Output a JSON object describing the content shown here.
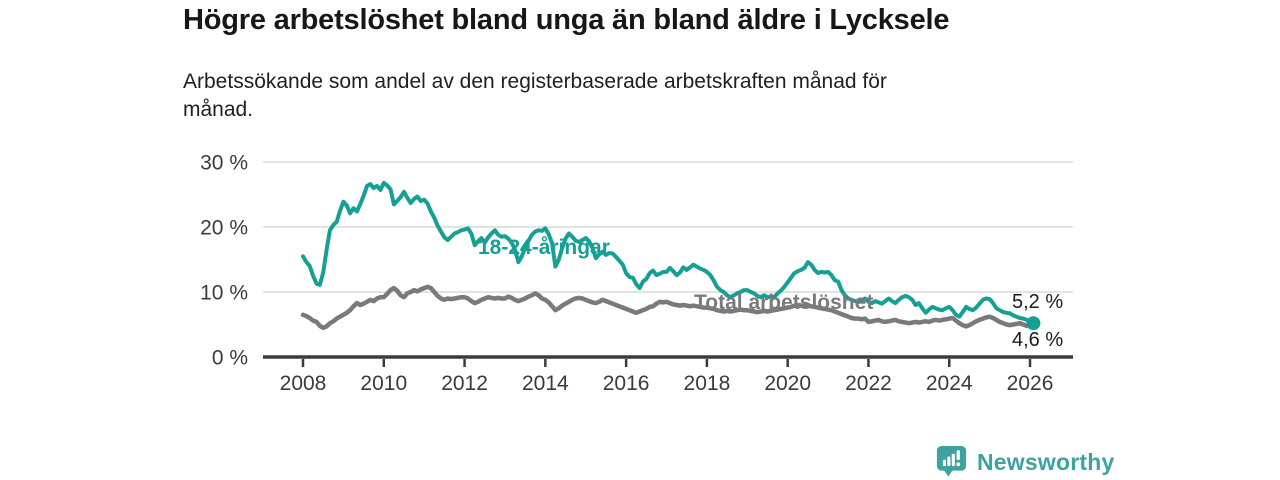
{
  "header": {
    "title": "Högre arbetslöshet bland unga än bland äldre i Lycksele",
    "subtitle_lines": [
      "Arbetssökande som andel av den registerbaserade arbetskraften månad för",
      "månad."
    ]
  },
  "footer": {
    "brand": "Newsworthy"
  },
  "colors": {
    "accent_teal": "#16a094",
    "line_gray": "#7a7a7e",
    "brand_teal": "#3ea3a0"
  },
  "chart_data": {
    "type": "line",
    "title": "Högre arbetslöshet bland unga än bland äldre i Lycksele",
    "subtitle": "Arbetssökande som andel av den registerbaserade arbetskraften månad för månad.",
    "x_unit": "month",
    "x_start": "2008-01",
    "x_end": "2026-02",
    "x_tick_labels": [
      "2008",
      "2010",
      "2012",
      "2014",
      "2016",
      "2018",
      "2020",
      "2022",
      "2024",
      "2026"
    ],
    "y_ticks": [
      0,
      10,
      20,
      30
    ],
    "y_tick_labels": [
      "0 %",
      "10 %",
      "20 %",
      "30 %"
    ],
    "ylim": [
      0,
      30
    ],
    "grid": "horizontal",
    "legend_position": "inline-labels",
    "series": [
      {
        "name": "18-24-åringar",
        "color": "#16a094",
        "end_label": "5,2 %",
        "end_value": 5.2,
        "values": [
          15.5,
          14.6,
          14.0,
          12.5,
          11.3,
          11.1,
          13.0,
          16.5,
          19.5,
          20.3,
          20.8,
          22.5,
          23.9,
          23.3,
          22.1,
          22.9,
          22.4,
          23.5,
          24.8,
          26.3,
          26.6,
          26.0,
          26.3,
          25.7,
          26.8,
          26.4,
          25.8,
          23.5,
          24.0,
          24.6,
          25.4,
          24.5,
          23.7,
          24.3,
          24.7,
          24.0,
          24.2,
          23.6,
          22.4,
          21.4,
          20.2,
          19.3,
          18.4,
          18.0,
          18.5,
          19.0,
          19.2,
          19.5,
          19.6,
          19.8,
          19.0,
          17.2,
          17.8,
          18.3,
          17.6,
          18.4,
          19.0,
          19.5,
          18.8,
          18.5,
          18.6,
          18.2,
          17.6,
          16.5,
          14.6,
          15.5,
          16.8,
          17.9,
          18.8,
          19.3,
          19.5,
          19.4,
          19.8,
          18.9,
          17.5,
          13.9,
          15.0,
          16.8,
          18.2,
          19.0,
          18.5,
          17.9,
          17.7,
          18.0,
          18.3,
          17.8,
          16.8,
          15.2,
          15.8,
          16.2,
          15.7,
          16.0,
          15.9,
          15.4,
          14.8,
          14.2,
          12.9,
          12.3,
          12.2,
          11.2,
          10.6,
          11.6,
          12.0,
          12.9,
          13.3,
          12.6,
          12.8,
          13.1,
          13.1,
          13.7,
          13.2,
          12.6,
          13.0,
          13.8,
          13.4,
          13.8,
          14.2,
          13.9,
          13.6,
          13.4,
          13.1,
          12.6,
          11.8,
          10.8,
          10.3,
          10.0,
          9.5,
          9.2,
          9.5,
          9.8,
          10.0,
          10.3,
          10.3,
          10.0,
          9.8,
          9.4,
          9.2,
          9.5,
          9.2,
          9.3,
          9.2,
          9.8,
          10.2,
          10.8,
          11.5,
          12.2,
          12.9,
          13.2,
          13.4,
          13.7,
          14.6,
          14.2,
          13.4,
          12.9,
          13.1,
          13.0,
          13.1,
          12.6,
          11.8,
          11.6,
          10.3,
          9.5,
          9.0,
          8.8,
          8.6,
          8.5,
          8.7,
          9.0,
          8.5,
          8.3,
          8.6,
          8.4,
          8.2,
          8.6,
          9.0,
          8.6,
          8.3,
          8.8,
          9.2,
          9.4,
          9.2,
          8.8,
          8.0,
          8.3,
          7.5,
          6.8,
          7.3,
          7.7,
          7.5,
          7.3,
          7.2,
          7.5,
          7.7,
          7.2,
          6.5,
          6.2,
          6.9,
          7.7,
          7.4,
          7.2,
          7.6,
          8.2,
          8.8,
          9.0,
          8.9,
          8.3,
          7.5,
          7.2,
          6.9,
          6.8,
          6.7,
          6.4,
          6.2,
          6.0,
          5.9,
          5.7,
          5.5,
          5.2
        ]
      },
      {
        "name": "Total arbetslöshet",
        "color": "#7a7a7e",
        "end_label": "4,6 %",
        "end_value": 4.6,
        "values": [
          6.5,
          6.3,
          6.0,
          5.6,
          5.4,
          4.8,
          4.5,
          4.7,
          5.2,
          5.5,
          5.9,
          6.2,
          6.5,
          6.8,
          7.2,
          7.8,
          8.3,
          8.0,
          8.2,
          8.5,
          8.8,
          8.6,
          9.0,
          9.2,
          9.2,
          9.7,
          10.3,
          10.6,
          10.2,
          9.5,
          9.2,
          9.8,
          10.0,
          10.3,
          10.1,
          10.4,
          10.6,
          10.8,
          10.6,
          10.0,
          9.4,
          9.0,
          8.8,
          9.0,
          8.9,
          9.0,
          9.1,
          9.2,
          9.2,
          9.0,
          8.6,
          8.3,
          8.5,
          8.8,
          9.0,
          9.2,
          9.1,
          9.0,
          9.1,
          9.0,
          9.0,
          9.3,
          9.1,
          8.8,
          8.6,
          8.8,
          9.0,
          9.3,
          9.5,
          9.8,
          9.5,
          9.0,
          8.8,
          8.4,
          7.8,
          7.2,
          7.5,
          7.9,
          8.2,
          8.5,
          8.8,
          9.0,
          9.1,
          9.0,
          8.8,
          8.6,
          8.4,
          8.3,
          8.5,
          8.8,
          8.6,
          8.4,
          8.2,
          8.0,
          7.8,
          7.6,
          7.4,
          7.2,
          7.0,
          6.8,
          7.0,
          7.2,
          7.4,
          7.7,
          7.8,
          8.2,
          8.5,
          8.4,
          8.5,
          8.3,
          8.1,
          8.0,
          7.9,
          8.0,
          7.9,
          7.8,
          7.9,
          7.8,
          7.7,
          7.6,
          7.6,
          7.5,
          7.4,
          7.2,
          7.1,
          7.0,
          7.1,
          7.0,
          7.1,
          7.2,
          7.3,
          7.2,
          7.2,
          7.1,
          7.0,
          6.9,
          7.0,
          7.1,
          7.0,
          7.1,
          7.2,
          7.3,
          7.4,
          7.5,
          7.6,
          7.7,
          7.9,
          8.0,
          7.9,
          7.8,
          7.9,
          7.8,
          7.7,
          7.6,
          7.5,
          7.4,
          7.3,
          7.2,
          7.0,
          6.8,
          6.6,
          6.4,
          6.2,
          6.0,
          5.9,
          5.9,
          5.8,
          5.9,
          5.4,
          5.5,
          5.6,
          5.7,
          5.5,
          5.4,
          5.5,
          5.6,
          5.7,
          5.5,
          5.4,
          5.3,
          5.2,
          5.3,
          5.4,
          5.3,
          5.4,
          5.5,
          5.4,
          5.6,
          5.7,
          5.6,
          5.7,
          5.8,
          5.9,
          6.0,
          5.6,
          5.2,
          4.9,
          4.7,
          4.9,
          5.2,
          5.5,
          5.7,
          5.9,
          6.1,
          6.2,
          6.0,
          5.7,
          5.4,
          5.2,
          5.0,
          4.9,
          5.0,
          5.1,
          5.2,
          5.0,
          4.8,
          4.7,
          4.6
        ]
      }
    ]
  }
}
